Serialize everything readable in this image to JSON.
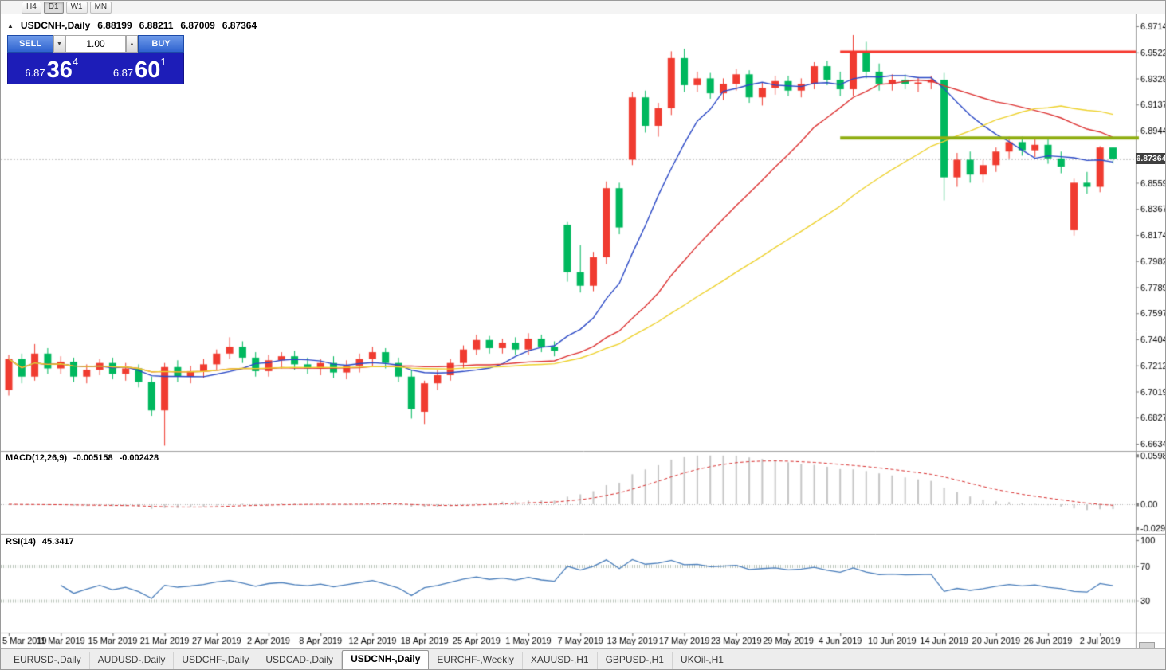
{
  "toolbar": {
    "timeframes": [
      {
        "label": "H4",
        "active": false
      },
      {
        "label": "D1",
        "active": true
      },
      {
        "label": "W1",
        "active": false
      },
      {
        "label": "MN",
        "active": false
      }
    ]
  },
  "symbol_info": {
    "collapse_marker": "▲",
    "title": "USDCNH-,Daily",
    "open": "6.88199",
    "high": "6.88211",
    "low": "6.87009",
    "close": "6.87364"
  },
  "trade_panel": {
    "sell_label": "SELL",
    "buy_label": "BUY",
    "volume": "1.00",
    "spin_down": "▼",
    "spin_up": "▲",
    "sell_price": {
      "prefix": "6.87",
      "big": "36",
      "sup": "4"
    },
    "buy_price": {
      "prefix": "6.87",
      "big": "60",
      "sup": "1"
    }
  },
  "price_tag": "6.87364",
  "indicators": {
    "macd": {
      "label": "MACD(12,26,9)",
      "value": "-0.005158",
      "signal_value": "-0.002428",
      "axis": [
        "0.0598",
        "0.00",
        "-0.029045"
      ]
    },
    "rsi": {
      "label": "RSI(14)",
      "value": "45.3417",
      "axis": [
        "100",
        "70",
        "30"
      ],
      "levels": [
        70,
        30
      ]
    }
  },
  "tabs": [
    {
      "label": "EURUSD-,Daily",
      "active": false
    },
    {
      "label": "AUDUSD-,Daily",
      "active": false
    },
    {
      "label": "USDCHF-,Daily",
      "active": false
    },
    {
      "label": "USDCAD-,Daily",
      "active": false
    },
    {
      "label": "USDCNH-,Daily",
      "active": true
    },
    {
      "label": "EURCHF-,Weekly",
      "active": false
    },
    {
      "label": "XAUUSD-,H1",
      "active": false
    },
    {
      "label": "GBPUSD-,H1",
      "active": false
    },
    {
      "label": "UKOil-,H1",
      "active": false
    }
  ],
  "chart_data": {
    "type": "candlestick",
    "symbol": "USDCNH",
    "timeframe": "Daily",
    "title": "USDCNH-,Daily",
    "current_price": 6.87364,
    "price_axis": [
      "6.97145",
      "6.95220",
      "6.93295",
      "6.91370",
      "6.89445",
      "6.87520",
      "6.85595",
      "6.83670",
      "6.81745",
      "6.79820",
      "6.77895",
      "6.75970",
      "6.74045",
      "6.72120",
      "6.70195",
      "6.68270",
      "6.66345"
    ],
    "x_labels": [
      "5 Mar 2019",
      "11 Mar 2019",
      "15 Mar 2019",
      "21 Mar 2019",
      "27 Mar 2019",
      "2 Apr 2019",
      "8 Apr 2019",
      "12 Apr 2019",
      "18 Apr 2019",
      "25 Apr 2019",
      "1 May 2019",
      "7 May 2019",
      "13 May 2019",
      "17 May 2019",
      "23 May 2019",
      "29 May 2019",
      "4 Jun 2019",
      "10 Jun 2019",
      "14 Jun 2019",
      "20 Jun 2019",
      "26 Jun 2019",
      "2 Jul 2019"
    ],
    "label_every": 4,
    "colors": {
      "up": "#f03b30",
      "down": "#00b85e",
      "ma_fast": "#2b49c6",
      "ma_mid": "#dd3333",
      "ma_slow": "#eed22e",
      "macd_hist": "#c6c6c6",
      "macd_signal": "#d93030",
      "rsi_line": "#4a7ebb",
      "hline_red": "#f5352c",
      "hline_green": "#8fae12",
      "current_price_line": "#909090"
    },
    "moving_averages": [
      {
        "period": 8,
        "color_key": "ma_fast"
      },
      {
        "period": 20,
        "color_key": "ma_mid"
      },
      {
        "period": 34,
        "color_key": "ma_slow"
      }
    ],
    "hlines": [
      {
        "price": 6.9527,
        "color_key": "hline_red",
        "width": 3,
        "from_bar": 64,
        "overhang": 0
      },
      {
        "price": 6.889,
        "color_key": "hline_green",
        "width": 4,
        "from_bar": 64,
        "overhang": 4
      }
    ],
    "candles": [
      [
        6.703,
        6.729,
        6.699,
        6.726
      ],
      [
        6.726,
        6.73,
        6.708,
        6.713
      ],
      [
        6.713,
        6.737,
        6.71,
        6.73
      ],
      [
        6.73,
        6.734,
        6.715,
        6.719
      ],
      [
        6.719,
        6.728,
        6.715,
        6.724
      ],
      [
        6.724,
        6.727,
        6.709,
        6.713
      ],
      [
        6.713,
        6.722,
        6.708,
        6.718
      ],
      [
        6.718,
        6.726,
        6.714,
        6.723
      ],
      [
        6.723,
        6.727,
        6.711,
        6.715
      ],
      [
        6.715,
        6.723,
        6.71,
        6.719
      ],
      [
        6.719,
        6.722,
        6.705,
        6.709
      ],
      [
        6.709,
        6.713,
        6.684,
        6.688
      ],
      [
        6.688,
        6.723,
        6.662,
        6.72
      ],
      [
        6.72,
        6.725,
        6.709,
        6.713
      ],
      [
        6.713,
        6.721,
        6.708,
        6.717
      ],
      [
        6.717,
        6.726,
        6.712,
        6.722
      ],
      [
        6.722,
        6.733,
        6.718,
        6.73
      ],
      [
        6.73,
        6.742,
        6.726,
        6.735
      ],
      [
        6.735,
        6.739,
        6.723,
        6.727
      ],
      [
        6.727,
        6.731,
        6.713,
        6.717
      ],
      [
        6.717,
        6.729,
        6.713,
        6.725
      ],
      [
        6.725,
        6.731,
        6.719,
        6.728
      ],
      [
        6.728,
        6.732,
        6.718,
        6.722
      ],
      [
        6.722,
        6.727,
        6.715,
        6.719
      ],
      [
        6.719,
        6.726,
        6.714,
        6.723
      ],
      [
        6.723,
        6.728,
        6.712,
        6.716
      ],
      [
        6.716,
        6.725,
        6.711,
        6.721
      ],
      [
        6.721,
        6.73,
        6.716,
        6.726
      ],
      [
        6.726,
        6.735,
        6.721,
        6.731
      ],
      [
        6.731,
        6.734,
        6.719,
        6.723
      ],
      [
        6.723,
        6.727,
        6.709,
        6.713
      ],
      [
        6.713,
        6.718,
        6.682,
        6.689
      ],
      [
        6.687,
        6.71,
        6.678,
        6.708
      ],
      [
        6.708,
        6.718,
        6.703,
        6.714
      ],
      [
        6.714,
        6.726,
        6.71,
        6.723
      ],
      [
        6.723,
        6.736,
        6.719,
        6.733
      ],
      [
        6.733,
        6.744,
        6.729,
        6.74
      ],
      [
        6.74,
        6.743,
        6.73,
        6.734
      ],
      [
        6.734,
        6.741,
        6.73,
        6.738
      ],
      [
        6.738,
        6.742,
        6.729,
        6.733
      ],
      [
        6.733,
        6.745,
        6.729,
        6.741
      ],
      [
        6.741,
        6.744,
        6.731,
        6.735
      ],
      [
        6.735,
        6.739,
        6.728,
        6.732
      ],
      [
        6.825,
        6.827,
        6.783,
        6.79
      ],
      [
        6.79,
        6.81,
        6.775,
        6.78
      ],
      [
        6.78,
        6.805,
        6.776,
        6.801
      ],
      [
        6.801,
        6.857,
        6.796,
        6.852
      ],
      [
        6.852,
        6.856,
        6.818,
        6.823
      ],
      [
        6.873,
        6.923,
        6.869,
        6.919
      ],
      [
        6.919,
        6.924,
        6.893,
        6.898
      ],
      [
        6.898,
        6.915,
        6.89,
        6.911
      ],
      [
        6.911,
        6.953,
        6.906,
        6.948
      ],
      [
        6.948,
        6.955,
        6.923,
        6.928
      ],
      [
        6.928,
        6.938,
        6.923,
        6.933
      ],
      [
        6.933,
        6.937,
        6.918,
        6.922
      ],
      [
        6.922,
        6.933,
        6.917,
        6.929
      ],
      [
        6.929,
        6.94,
        6.924,
        6.936
      ],
      [
        6.936,
        6.939,
        6.915,
        6.919
      ],
      [
        6.919,
        6.93,
        6.913,
        6.926
      ],
      [
        6.926,
        6.935,
        6.921,
        6.931
      ],
      [
        6.931,
        6.935,
        6.92,
        6.924
      ],
      [
        6.924,
        6.933,
        6.919,
        6.929
      ],
      [
        6.929,
        6.945,
        6.925,
        6.942
      ],
      [
        6.942,
        6.946,
        6.928,
        6.932
      ],
      [
        6.932,
        6.938,
        6.92,
        6.925
      ],
      [
        6.925,
        6.965,
        6.92,
        6.953
      ],
      [
        6.953,
        6.96,
        6.933,
        6.938
      ],
      [
        6.938,
        6.944,
        6.924,
        6.929
      ],
      [
        6.929,
        6.936,
        6.924,
        6.932
      ],
      [
        6.932,
        6.936,
        6.925,
        6.929
      ],
      [
        6.929,
        6.934,
        6.923,
        6.93
      ],
      [
        6.93,
        6.935,
        6.925,
        6.932
      ],
      [
        6.932,
        6.937,
        6.843,
        6.86
      ],
      [
        6.86,
        6.878,
        6.853,
        6.873
      ],
      [
        6.873,
        6.879,
        6.856,
        6.862
      ],
      [
        6.862,
        6.873,
        6.856,
        6.869
      ],
      [
        6.869,
        6.882,
        6.864,
        6.879
      ],
      [
        6.879,
        6.89,
        6.874,
        6.886
      ],
      [
        6.886,
        6.89,
        6.876,
        6.88
      ],
      [
        6.88,
        6.888,
        6.875,
        6.884
      ],
      [
        6.884,
        6.888,
        6.87,
        6.874
      ],
      [
        6.874,
        6.879,
        6.863,
        6.868
      ],
      [
        6.821,
        6.859,
        6.817,
        6.856
      ],
      [
        6.856,
        6.864,
        6.848,
        6.853
      ],
      [
        6.853,
        6.883,
        6.849,
        6.882
      ],
      [
        6.88199,
        6.88211,
        6.87009,
        6.87364
      ]
    ]
  }
}
